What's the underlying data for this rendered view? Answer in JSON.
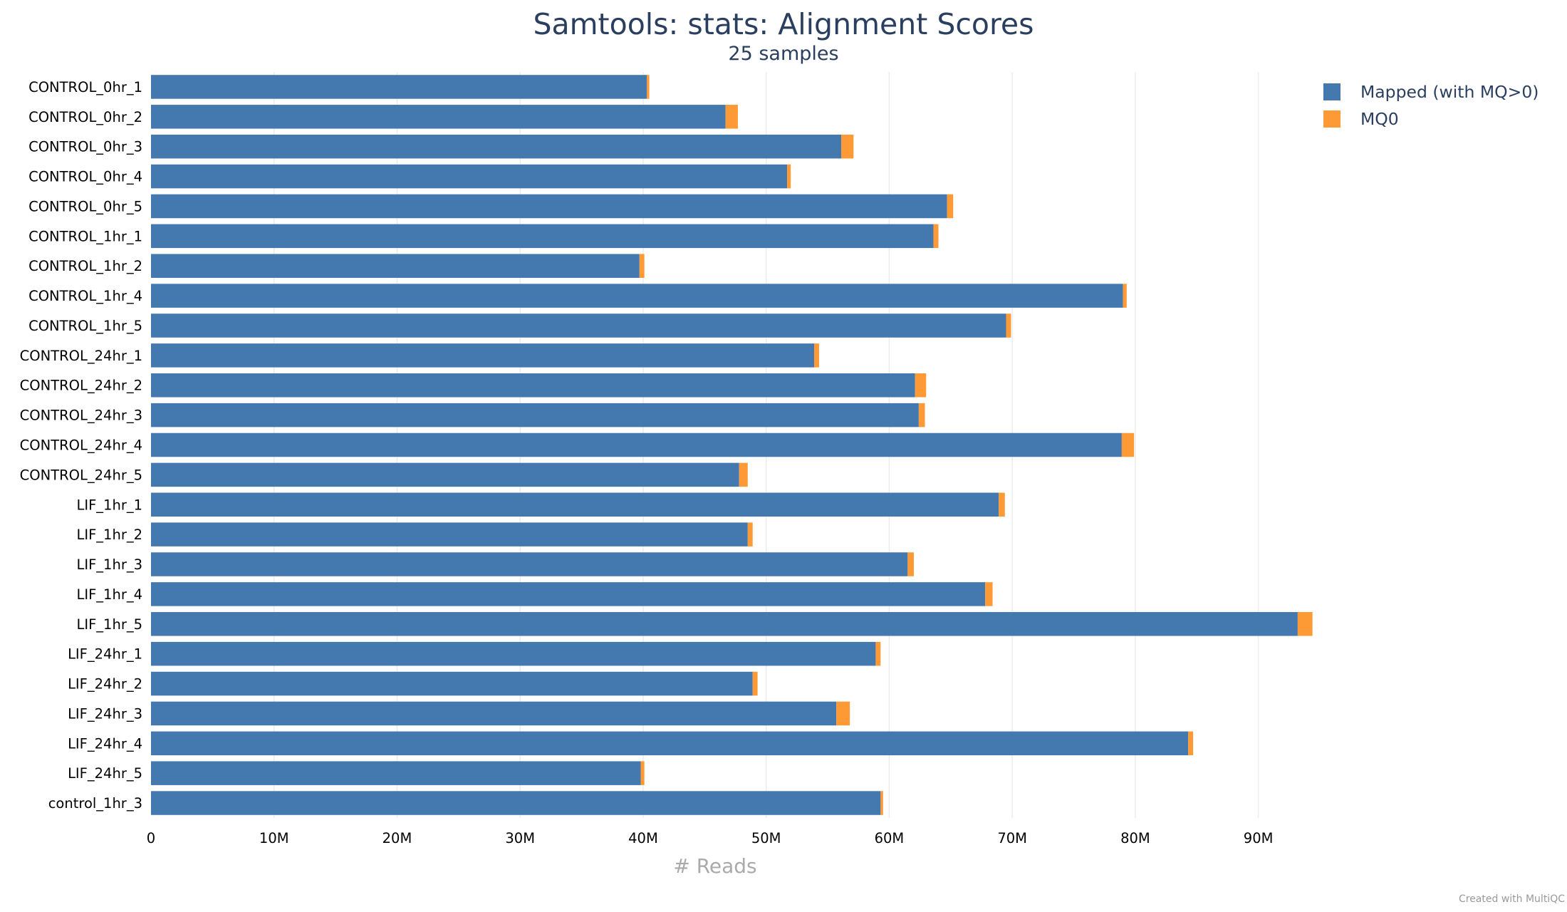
{
  "chart_data": {
    "type": "bar",
    "orientation": "horizontal",
    "stacked": true,
    "title": "Samtools: stats: Alignment Scores",
    "subtitle": "25 samples",
    "xlabel": "# Reads",
    "ylabel": "",
    "xlim": [
      0,
      95000000
    ],
    "x_ticks": [
      0,
      10000000,
      20000000,
      30000000,
      40000000,
      50000000,
      60000000,
      70000000,
      80000000,
      90000000
    ],
    "x_tick_labels": [
      "0",
      "10M",
      "20M",
      "30M",
      "40M",
      "50M",
      "60M",
      "70M",
      "80M",
      "90M"
    ],
    "grid": true,
    "legend_position": "top-right",
    "categories": [
      "CONTROL_0hr_1",
      "CONTROL_0hr_2",
      "CONTROL_0hr_3",
      "CONTROL_0hr_4",
      "CONTROL_0hr_5",
      "CONTROL_1hr_1",
      "CONTROL_1hr_2",
      "CONTROL_1hr_4",
      "CONTROL_1hr_5",
      "CONTROL_24hr_1",
      "CONTROL_24hr_2",
      "CONTROL_24hr_3",
      "CONTROL_24hr_4",
      "CONTROL_24hr_5",
      "LIF_1hr_1",
      "LIF_1hr_2",
      "LIF_1hr_3",
      "LIF_1hr_4",
      "LIF_1hr_5",
      "LIF_24hr_1",
      "LIF_24hr_2",
      "LIF_24hr_3",
      "LIF_24hr_4",
      "LIF_24hr_5",
      "control_1hr_3"
    ],
    "series": [
      {
        "name": "Mapped (with MQ>0)",
        "color": "#4479b0",
        "values": [
          40300000,
          46700000,
          56100000,
          51700000,
          64700000,
          63600000,
          39700000,
          79000000,
          69500000,
          53900000,
          62100000,
          62400000,
          78900000,
          47800000,
          68900000,
          48500000,
          61500000,
          67800000,
          93200000,
          58900000,
          48900000,
          55700000,
          84300000,
          39800000,
          59300000
        ]
      },
      {
        "name": "MQ0",
        "color": "#fd9a35",
        "values": [
          200000,
          1000000,
          1000000,
          300000,
          500000,
          400000,
          400000,
          300000,
          400000,
          400000,
          900000,
          500000,
          1000000,
          700000,
          500000,
          400000,
          500000,
          600000,
          1200000,
          400000,
          400000,
          1100000,
          400000,
          300000,
          200000
        ]
      }
    ],
    "credit": "Created with MultiQC"
  }
}
